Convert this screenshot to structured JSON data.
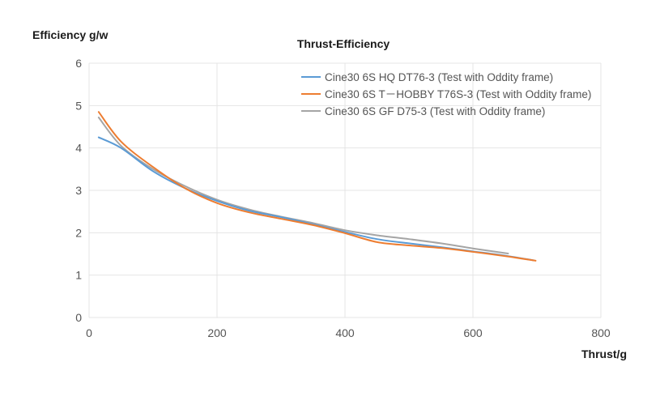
{
  "chart_data": {
    "type": "line",
    "title": "Thrust-Efficiency",
    "xlabel": "Thrust/g",
    "ylabel": "Efficiency g/w",
    "xlim": [
      0,
      800
    ],
    "ylim": [
      0,
      6
    ],
    "x_ticks": [
      "0",
      "200",
      "400",
      "600",
      "800"
    ],
    "y_ticks": [
      "0",
      "1",
      "2",
      "3",
      "4",
      "5",
      "6"
    ],
    "x_tick_values": [
      0,
      200,
      400,
      600,
      800
    ],
    "y_tick_values": [
      0,
      1,
      2,
      3,
      4,
      5,
      6
    ],
    "grid": true,
    "legend_position": "top-right",
    "series": [
      {
        "name": "Cine30 6S HQ DT76-3  (Test with Oddity frame)",
        "color": "#5b9bd5",
        "x": [
          15,
          50,
          100,
          150,
          200,
          250,
          300,
          350,
          400,
          450,
          500,
          550,
          600,
          650,
          695
        ],
        "y": [
          4.25,
          4.0,
          3.45,
          3.05,
          2.75,
          2.52,
          2.37,
          2.2,
          2.02,
          1.85,
          1.75,
          1.66,
          1.56,
          1.46,
          1.35
        ]
      },
      {
        "name": "Cine30 6S T－HOBBY T76S-3",
        "note": "(Test with Oddity frame)",
        "color": "#ed7d31",
        "x": [
          15,
          50,
          100,
          150,
          200,
          250,
          300,
          350,
          400,
          450,
          500,
          550,
          600,
          650,
          698
        ],
        "y": [
          4.85,
          4.15,
          3.55,
          3.05,
          2.7,
          2.48,
          2.33,
          2.18,
          1.99,
          1.78,
          1.7,
          1.64,
          1.55,
          1.45,
          1.34
        ]
      },
      {
        "name": "Cine30 6S GF  D75-3",
        "note": "(Test with Oddity frame)",
        "color": "#a5a5a5",
        "x": [
          15,
          50,
          100,
          150,
          200,
          250,
          300,
          350,
          400,
          450,
          500,
          550,
          600,
          655
        ],
        "y": [
          4.72,
          4.05,
          3.5,
          3.1,
          2.78,
          2.55,
          2.38,
          2.23,
          2.06,
          1.94,
          1.85,
          1.75,
          1.63,
          1.51
        ]
      }
    ]
  }
}
